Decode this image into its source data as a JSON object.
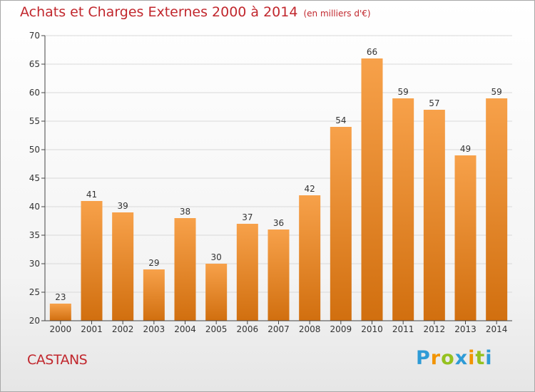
{
  "title": "Achats et Charges Externes 2000 à 2014",
  "subtitle": "(en milliers d'€)",
  "commune": "CASTANS",
  "logo_text": "Proxiti",
  "colors": {
    "title": "#c1272d",
    "bar_top": "#f7a14a",
    "bar_bottom": "#d16f0f",
    "grid": "#d9d9d9",
    "axis": "#444444"
  },
  "chart_data": {
    "type": "bar",
    "categories": [
      "2000",
      "2001",
      "2002",
      "2003",
      "2004",
      "2005",
      "2006",
      "2007",
      "2008",
      "2009",
      "2010",
      "2011",
      "2012",
      "2013",
      "2014"
    ],
    "values": [
      23,
      41,
      39,
      29,
      38,
      30,
      37,
      36,
      42,
      54,
      66,
      59,
      57,
      49,
      59
    ],
    "title": "Achats et Charges Externes 2000 à 2014",
    "subtitle": "(en milliers d'€)",
    "xlabel": "",
    "ylabel": "",
    "ylim": [
      20,
      70
    ],
    "yticks": [
      20,
      25,
      30,
      35,
      40,
      45,
      50,
      55,
      60,
      65,
      70
    ],
    "grid": true,
    "data_labels": true
  }
}
